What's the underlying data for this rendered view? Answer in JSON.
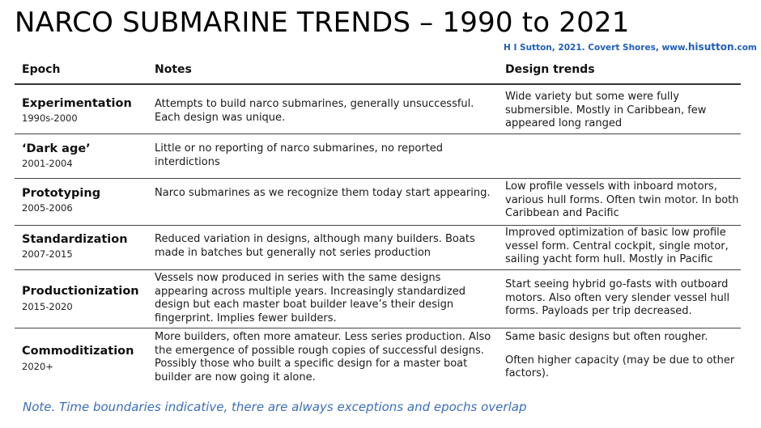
{
  "title": "NARCO SUBMARINE TRENDS – 1990 to 2021",
  "credit": {
    "text": "H I Sutton, 2021. Covert Shores, www.",
    "site": "hisutton",
    "tld": ".com"
  },
  "columns": {
    "epoch": "Epoch",
    "notes": "Notes",
    "trends": "Design trends"
  },
  "rows": [
    {
      "epoch": "Experimentation",
      "years": "1990s-2000",
      "notes": "Attempts to build narco submarines, generally unsuccessful. Each design was unique.",
      "trends": "Wide variety but some were fully submersible. Mostly in Caribbean, few appeared long ranged"
    },
    {
      "epoch": "‘Dark age’",
      "years": "2001-2004",
      "notes": "Little or no reporting of narco submarines, no reported interdictions",
      "trends": ""
    },
    {
      "epoch": "Prototyping",
      "years": "2005-2006",
      "notes": "Narco submarines as we recognize them today start appearing.",
      "trends": "Low profile vessels with inboard motors, various hull forms. Often twin motor. In both Caribbean and Pacific"
    },
    {
      "epoch": "Standardization",
      "years": "2007-2015",
      "notes": "Reduced variation in designs, although many builders. Boats made in batches but generally not series production",
      "trends": "Improved optimization of basic low profile vessel form. Central cockpit, single motor, sailing yacht form hull. Mostly in Pacific"
    },
    {
      "epoch": "Productionization",
      "years": "2015-2020",
      "notes": "Vessels now produced in series with the same designs appearing across multiple years. Increasingly standardized design but each master boat builder leave’s their design fingerprint. Implies fewer builders.",
      "trends": "Start seeing hybrid go-fasts with outboard motors. Also often very slender vessel hull forms. Payloads per trip decreased."
    },
    {
      "epoch": "Commoditization",
      "years": "2020+",
      "notes": "More builders, often more amateur. Less series production. Also the emergence of possible rough copies of successful designs. Possibly those who built a specific design for a master boat builder are now going it alone.",
      "trends": "Same basic designs but often rougher.",
      "trends_2": "Often higher capacity (may be due to other factors)."
    }
  ],
  "footnote": "Note. Time boundaries indicative, there are always exceptions and epochs overlap"
}
